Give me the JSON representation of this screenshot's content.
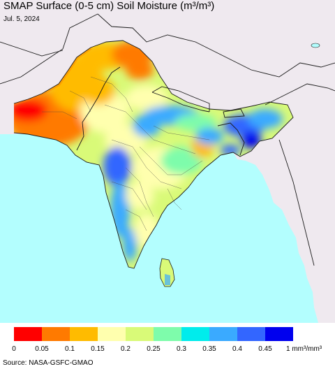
{
  "title": "SMAP Surface (0-5 cm) Soil Moisture (m³/m³)",
  "date": "Jul. 5, 2024",
  "source": "Source: NASA-GSFC-GMAO",
  "colors": {
    "ocean": "#b3fefe",
    "land_outside": "#efe9ef",
    "border": "#1a1a1a"
  },
  "legend": {
    "unit_label": "1 mm³/mm³",
    "colors": [
      "#ff0000",
      "#ff7a00",
      "#ffbb00",
      "#ffffae",
      "#d9fa78",
      "#7efcab",
      "#00ecec",
      "#3aaaff",
      "#3366ff",
      "#0000ee"
    ],
    "tick_labels": [
      "0",
      "0.05",
      "0.1",
      "0.15",
      "0.2",
      "0.25",
      "0.3",
      "0.35",
      "0.4",
      "0.45"
    ]
  }
}
